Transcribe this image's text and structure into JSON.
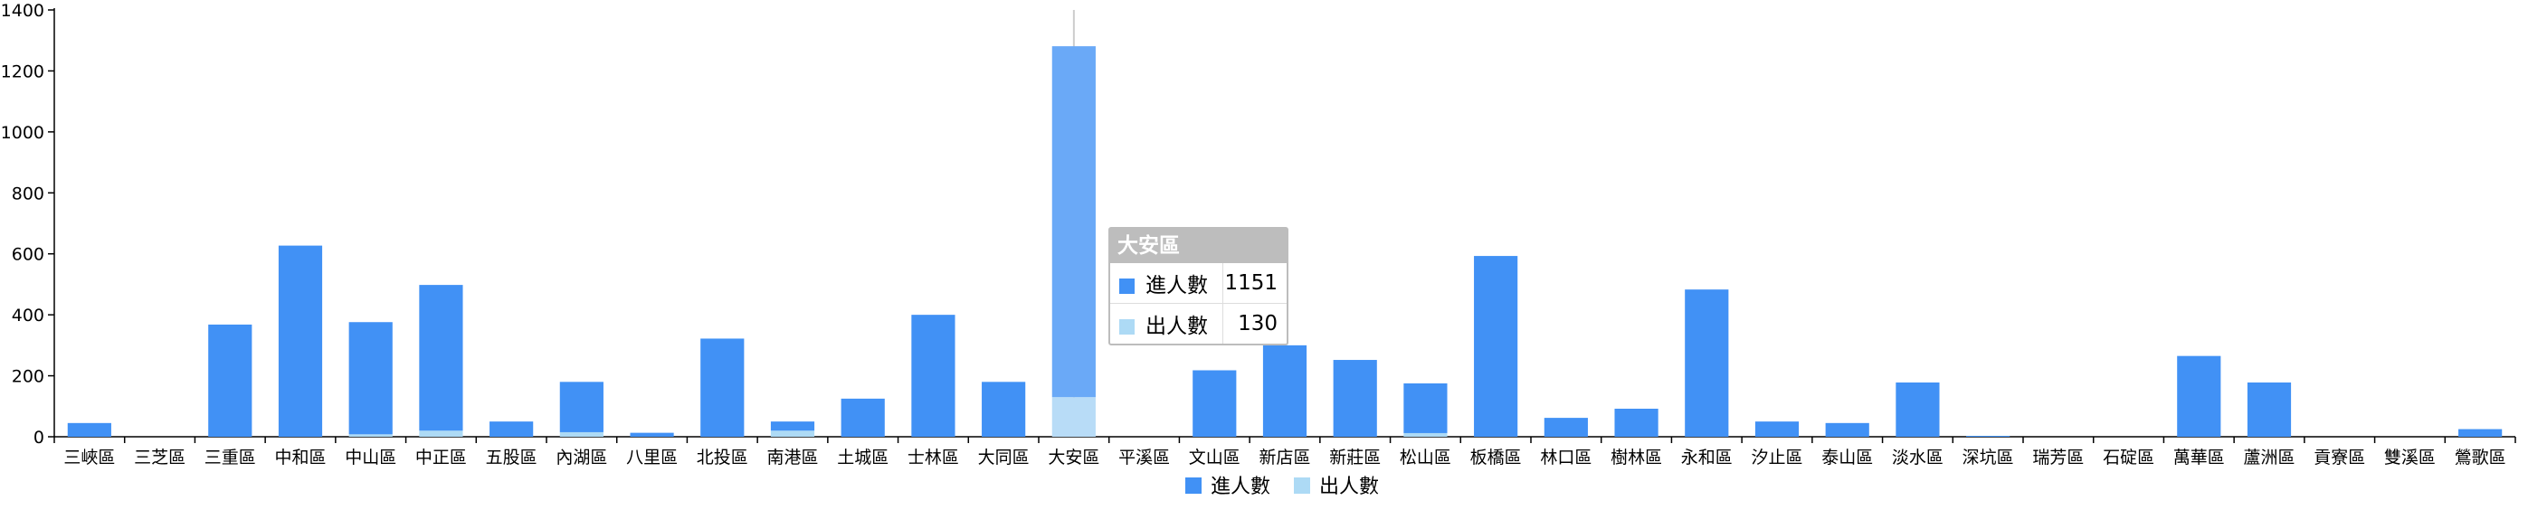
{
  "chart_data": {
    "type": "bar",
    "stacked": true,
    "categories": [
      "三峽區",
      "三芝區",
      "三重區",
      "中和區",
      "中山區",
      "中正區",
      "五股區",
      "內湖區",
      "八里區",
      "北投區",
      "南港區",
      "土城區",
      "士林區",
      "大同區",
      "大安區",
      "平溪區",
      "文山區",
      "新店區",
      "新莊區",
      "松山區",
      "板橋區",
      "林口區",
      "樹林區",
      "永和區",
      "汐止區",
      "泰山區",
      "淡水區",
      "深坑區",
      "瑞芳區",
      "石碇區",
      "萬華區",
      "蘆洲區",
      "貢寮區",
      "雙溪區",
      "鶯歌區"
    ],
    "series": [
      {
        "name": "出人數",
        "color": "#addaf5",
        "values": [
          0,
          0,
          0,
          0,
          8,
          20,
          0,
          15,
          0,
          0,
          20,
          0,
          0,
          0,
          130,
          0,
          0,
          0,
          0,
          12,
          0,
          0,
          0,
          0,
          0,
          0,
          0,
          0,
          0,
          0,
          0,
          0,
          0,
          0,
          0
        ]
      },
      {
        "name": "進人數",
        "color": "#4191f5",
        "values": [
          45,
          0,
          368,
          627,
          368,
          478,
          50,
          165,
          13,
          322,
          30,
          125,
          400,
          180,
          1151,
          0,
          218,
          300,
          252,
          163,
          593,
          62,
          92,
          483,
          50,
          45,
          178,
          3,
          0,
          0,
          265,
          178,
          0,
          0,
          25
        ]
      }
    ],
    "yticks": [
      0,
      200,
      400,
      600,
      800,
      1000,
      1200,
      1400
    ],
    "ylim": [
      0,
      1400
    ],
    "grid": false,
    "legend_position": "bottom-center",
    "hovered_category": "大安區"
  },
  "tooltip": {
    "title": "大安區",
    "rows": [
      {
        "name": "進人數",
        "value": "1151",
        "color": "#4191f5"
      },
      {
        "name": "出人數",
        "value": "130",
        "color": "#addaf5"
      }
    ]
  },
  "legend": [
    {
      "name": "進人數",
      "color": "#4191f5"
    },
    {
      "name": "出人數",
      "color": "#addaf5"
    }
  ]
}
